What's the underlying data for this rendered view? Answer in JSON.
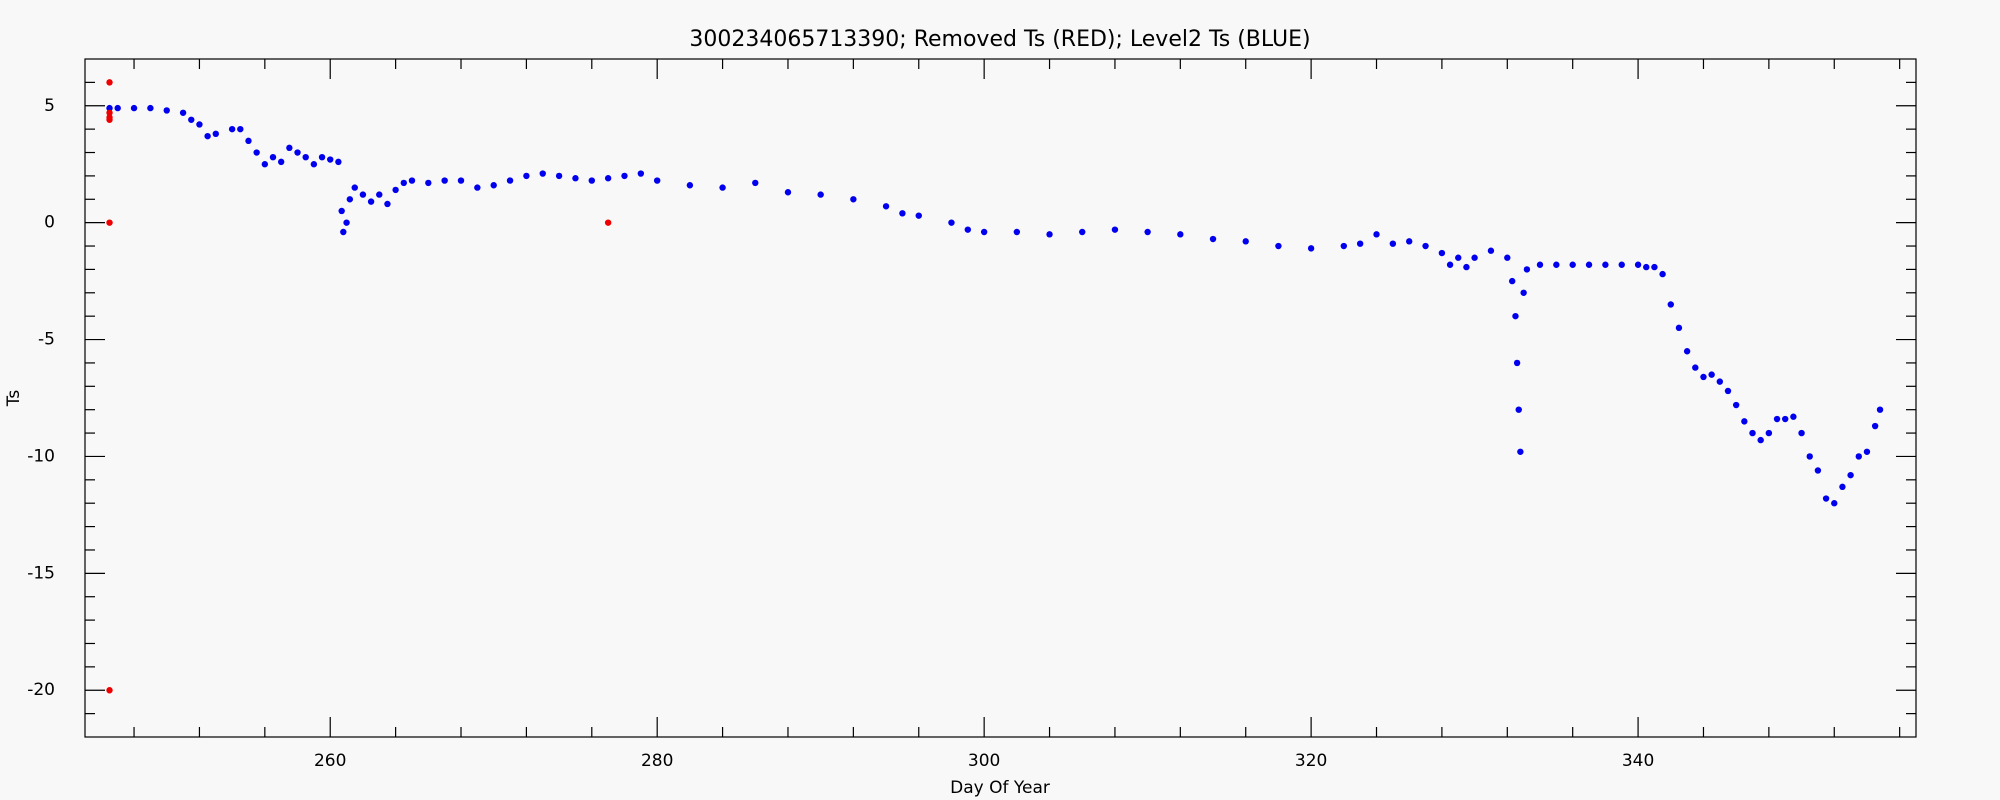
{
  "chart_data": {
    "type": "scatter",
    "title": "300234065713390; Removed Ts (RED); Level2 Ts (BLUE)",
    "x_label": "Day Of Year",
    "y_label": "Ts",
    "xlim": [
      245,
      357
    ],
    "ylim": [
      -22,
      7
    ],
    "xticks": [
      260,
      280,
      300,
      320,
      340
    ],
    "yticks": [
      -20,
      -15,
      -10,
      -5,
      0,
      5
    ],
    "xminorticks": [
      248,
      252,
      256,
      264,
      268,
      272,
      276,
      284,
      288,
      292,
      296,
      304,
      308,
      312,
      316,
      324,
      328,
      332,
      336,
      344,
      348,
      352,
      356
    ],
    "yminorticks": [
      -21,
      -19,
      -18,
      -17,
      -16,
      -14,
      -13,
      -12,
      -11,
      -9,
      -8,
      -7,
      -6,
      -4,
      -3,
      -2,
      -1,
      1,
      2,
      3,
      4,
      6
    ],
    "series": [
      {
        "name": "Level2 Ts",
        "color": "#0000ee",
        "x": [
          246.5,
          247,
          248,
          249,
          250,
          251,
          251.5,
          252,
          252.5,
          253,
          254,
          254.5,
          255,
          255.5,
          256,
          256.5,
          257,
          257.5,
          258,
          258.5,
          259,
          259.5,
          260,
          260.5,
          260.7,
          260.8,
          261,
          261.2,
          261.5,
          262,
          262.5,
          263,
          263.5,
          264,
          264.5,
          265,
          266,
          267,
          268,
          269,
          270,
          271,
          272,
          273,
          274,
          275,
          276,
          277,
          278,
          279,
          280,
          282,
          284,
          286,
          288,
          290,
          292,
          294,
          295,
          296,
          298,
          299,
          300,
          302,
          304,
          306,
          308,
          310,
          312,
          314,
          316,
          318,
          320,
          322,
          323,
          324,
          325,
          326,
          327,
          328,
          328.5,
          329,
          329.5,
          330,
          331,
          332,
          332.3,
          332.5,
          332.6,
          332.7,
          332.8,
          333,
          333.2,
          334,
          335,
          336,
          337,
          338,
          339,
          340,
          340.5,
          341,
          341.5,
          342,
          342.5,
          343,
          343.5,
          344,
          344.5,
          345,
          345.5,
          346,
          346.5,
          347,
          347.5,
          348,
          348.5,
          349,
          349.5,
          350,
          350.5,
          351,
          351.5,
          352,
          352.5,
          353,
          353.5,
          354,
          354.5,
          354.8
        ],
        "values": [
          4.9,
          4.9,
          4.9,
          4.9,
          4.8,
          4.7,
          4.4,
          4.2,
          3.7,
          3.8,
          4.0,
          4.0,
          3.5,
          3.0,
          2.5,
          2.8,
          2.6,
          3.2,
          3.0,
          2.8,
          2.5,
          2.8,
          2.7,
          2.6,
          0.5,
          -0.4,
          0.0,
          1.0,
          1.5,
          1.2,
          0.9,
          1.2,
          0.8,
          1.4,
          1.7,
          1.8,
          1.7,
          1.8,
          1.8,
          1.5,
          1.6,
          1.8,
          2.0,
          2.1,
          2.0,
          1.9,
          1.8,
          1.9,
          2.0,
          2.1,
          1.8,
          1.6,
          1.5,
          1.7,
          1.3,
          1.2,
          1.0,
          0.7,
          0.4,
          0.3,
          0.0,
          -0.3,
          -0.4,
          -0.4,
          -0.5,
          -0.4,
          -0.3,
          -0.4,
          -0.5,
          -0.7,
          -0.8,
          -1.0,
          -1.1,
          -1.0,
          -0.9,
          -0.5,
          -0.9,
          -0.8,
          -1.0,
          -1.3,
          -1.8,
          -1.5,
          -1.9,
          -1.5,
          -1.2,
          -1.5,
          -2.5,
          -4,
          -6,
          -8,
          -9.8,
          -3,
          -2.0,
          -1.8,
          -1.8,
          -1.8,
          -1.8,
          -1.8,
          -1.8,
          -1.8,
          -1.9,
          -1.9,
          -2.2,
          -3.5,
          -4.5,
          -5.5,
          -6.2,
          -6.6,
          -6.5,
          -6.8,
          -7.2,
          -7.8,
          -8.5,
          -9,
          -9.3,
          -9,
          -8.4,
          -8.4,
          -8.3,
          -9,
          -10,
          -10.6,
          -11.8,
          -12,
          -11.3,
          -10.8,
          -10,
          -9.8,
          -8.7,
          -8.0
        ]
      },
      {
        "name": "Removed Ts",
        "color": "#ee0000",
        "x": [
          246.5,
          246.5,
          246.5,
          246.5,
          246.5,
          246.5,
          277
        ],
        "values": [
          6,
          4.7,
          4.5,
          4.4,
          0,
          -20,
          0
        ]
      }
    ]
  }
}
